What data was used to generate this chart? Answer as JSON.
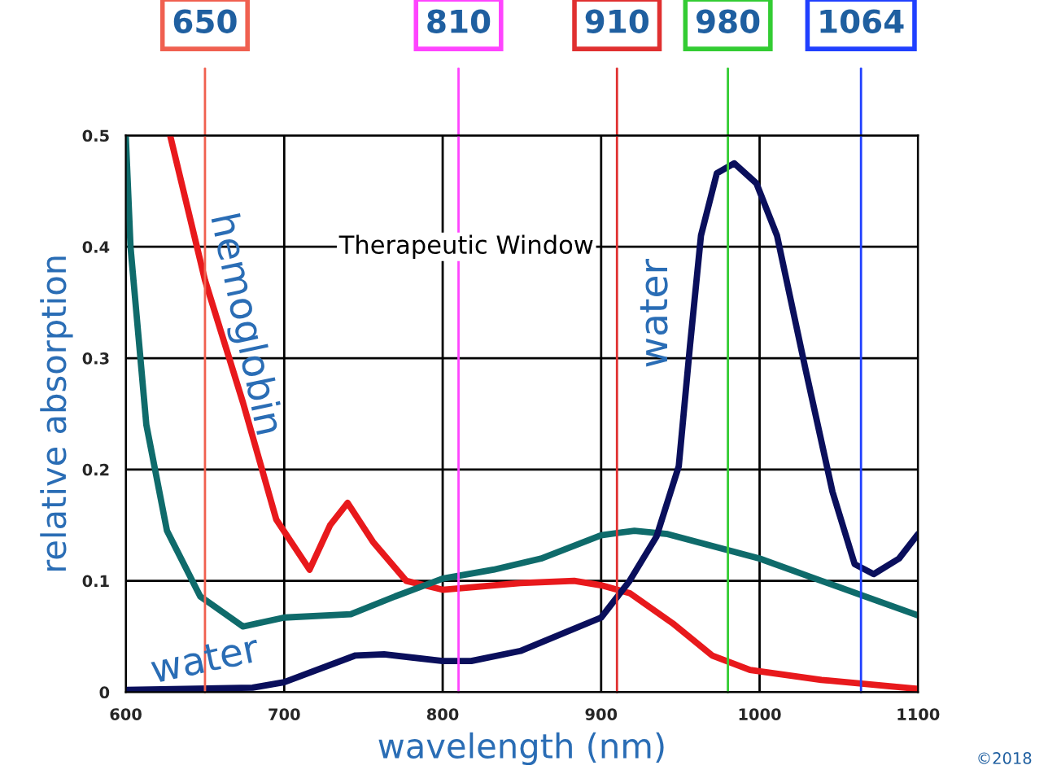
{
  "chart_data": {
    "type": "line",
    "xlabel": "wavelength (nm)",
    "ylabel": "relative absorption",
    "xlim": [
      600,
      1100
    ],
    "xticks": [
      600,
      700,
      800,
      900,
      1000,
      1100
    ],
    "ylim": [
      0,
      0.5
    ],
    "yticks": [
      0,
      0.1,
      0.2,
      0.3,
      0.4,
      0.5
    ],
    "grid": true,
    "marker": "none",
    "line_style": "solid",
    "series": [
      {
        "color": "#e8191c",
        "x": [
          628,
          650,
          674,
          695,
          716,
          729,
          740,
          756,
          777,
          800,
          849,
          883,
          900,
          918,
          945,
          970,
          994,
          1039,
          1100
        ],
        "values": [
          0.5,
          0.37,
          0.26,
          0.155,
          0.11,
          0.15,
          0.17,
          0.135,
          0.1,
          0.092,
          0.098,
          0.1,
          0.096,
          0.089,
          0.062,
          0.033,
          0.02,
          0.011,
          0.003
        ]
      },
      {
        "color": "#0f6b6b",
        "x": [
          600,
          603,
          613,
          626,
          647,
          674,
          700,
          742,
          770,
          800,
          832,
          862,
          900,
          921,
          942,
          1000,
          1039,
          1100
        ],
        "values": [
          0.5,
          0.4,
          0.24,
          0.145,
          0.086,
          0.059,
          0.067,
          0.07,
          0.086,
          0.102,
          0.11,
          0.12,
          0.141,
          0.145,
          0.142,
          0.12,
          0.1,
          0.069
        ]
      },
      {
        "color": "#0a0f5c",
        "x": [
          600,
          680,
          700,
          745,
          763,
          800,
          818,
          849,
          900,
          918,
          935,
          949,
          956,
          963,
          973,
          984,
          998,
          1011,
          1029,
          1046,
          1060,
          1072,
          1088,
          1100
        ],
        "values": [
          0.002,
          0.004,
          0.009,
          0.033,
          0.034,
          0.028,
          0.028,
          0.037,
          0.067,
          0.1,
          0.14,
          0.203,
          0.31,
          0.41,
          0.466,
          0.475,
          0.457,
          0.41,
          0.29,
          0.18,
          0.115,
          0.106,
          0.12,
          0.142
        ]
      }
    ],
    "ref_lines": [
      {
        "axis": "x",
        "value": 650,
        "label": "650",
        "color": "#f06050"
      },
      {
        "axis": "x",
        "value": 810,
        "label": "810",
        "color": "#ff44ff"
      },
      {
        "axis": "x",
        "value": 910,
        "label": "910",
        "color": "#e03030"
      },
      {
        "axis": "x",
        "value": 980,
        "label": "980",
        "color": "#33cc33"
      },
      {
        "axis": "x",
        "value": 1064,
        "label": "1064",
        "color": "#2040ff"
      }
    ],
    "annotations": [
      "hemoglobin",
      "water",
      "water",
      "Therapeutic Window",
      "©2018"
    ]
  }
}
